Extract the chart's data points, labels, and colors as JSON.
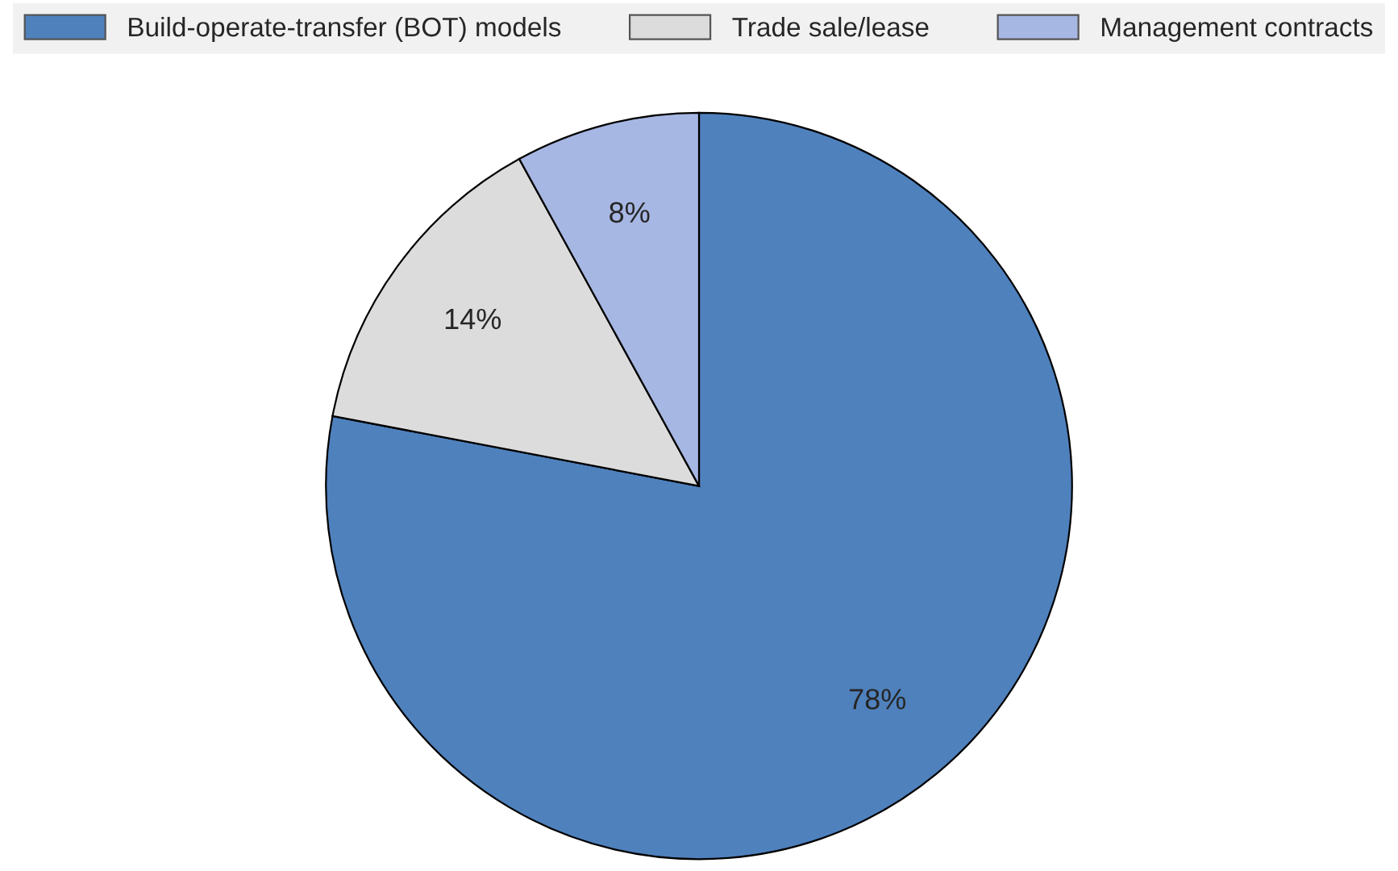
{
  "chart_data": {
    "type": "pie",
    "categories": [
      "Build-operate-transfer (BOT) models",
      "Trade sale/lease",
      "Management contracts"
    ],
    "values": [
      78,
      14,
      8
    ],
    "colors": [
      "#4f81bd",
      "#dcdcdc",
      "#a7b7e3"
    ],
    "value_labels": [
      "78%",
      "14%",
      "8%"
    ],
    "legend": "top"
  }
}
